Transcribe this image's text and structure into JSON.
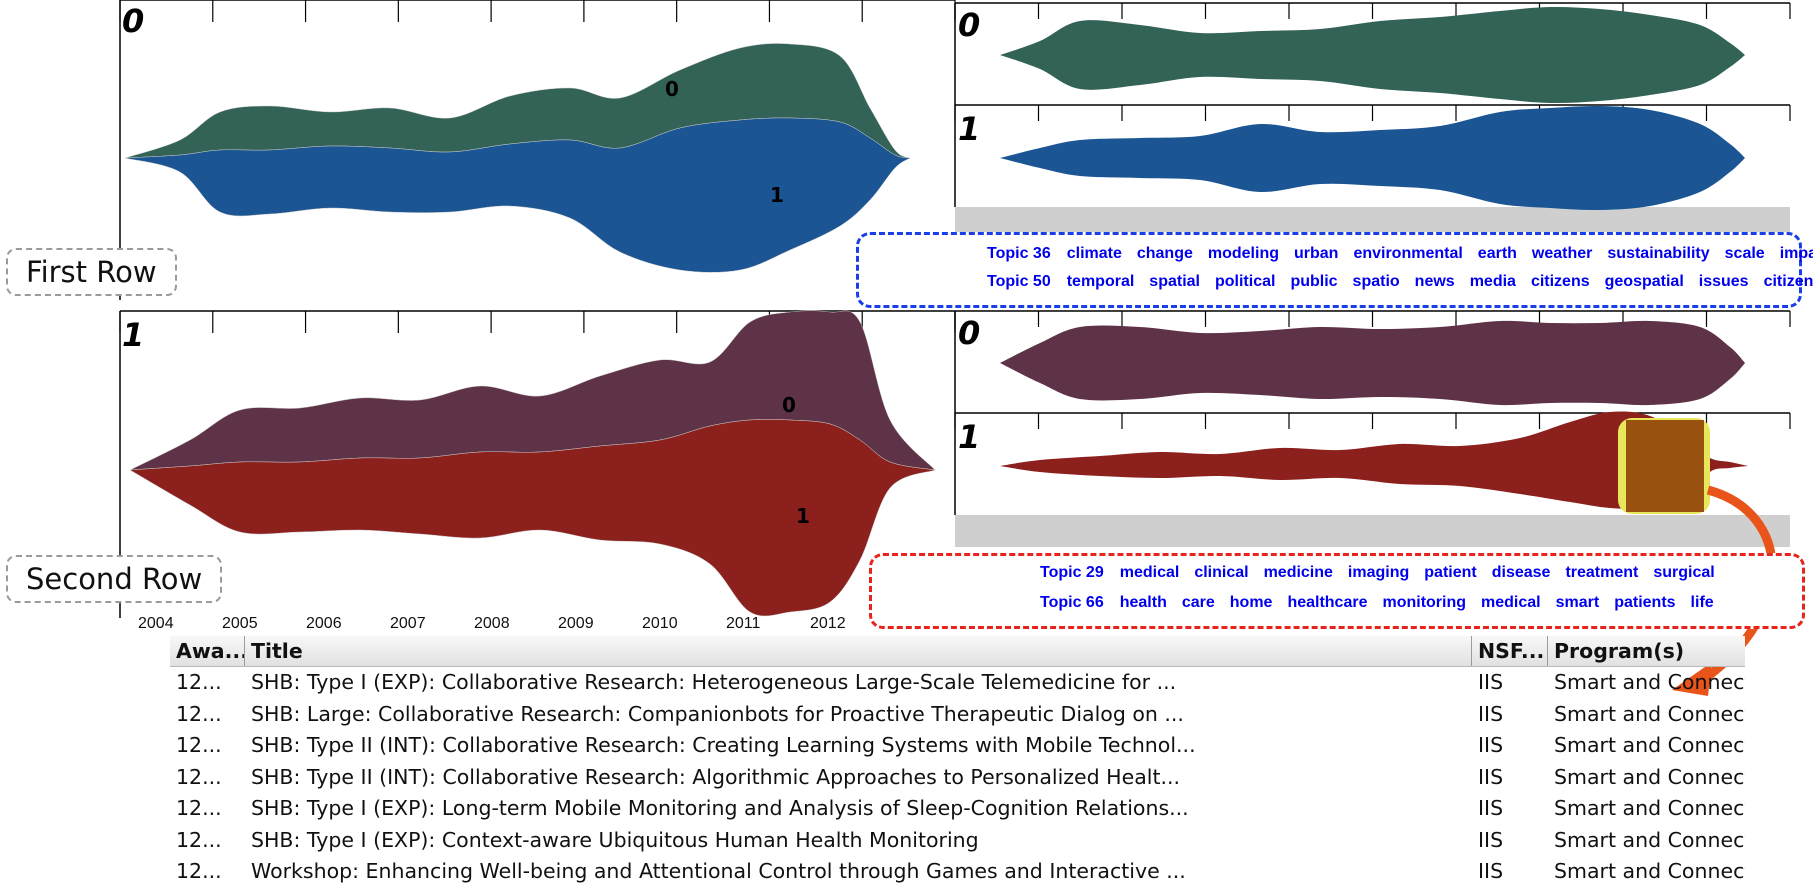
{
  "row_labels": {
    "first": "First Row",
    "second": "Second Row"
  },
  "years": [
    "2004",
    "2005",
    "2006",
    "2007",
    "2008",
    "2009",
    "2010",
    "2011",
    "2012"
  ],
  "panels": {
    "first_overview": {
      "label": "0",
      "colors": {
        "top": "#326356",
        "bottom": "#1b5593"
      },
      "stream_labels": [
        "0",
        "1"
      ]
    },
    "first_top": {
      "label": "0",
      "color": "#326356"
    },
    "first_bottom": {
      "label": "1",
      "color": "#1b5593"
    },
    "second_overview": {
      "label": "1",
      "colors": {
        "top": "#5f3347",
        "bottom": "#8b201d"
      },
      "stream_labels": [
        "0",
        "1"
      ]
    },
    "second_top": {
      "label": "0",
      "color": "#5f3347"
    },
    "second_bottom": {
      "label": "1",
      "color": "#8b201d"
    },
    "highlight_color": "#e8e65a",
    "selection_color": "#98510e"
  },
  "topic_boxes": {
    "first": {
      "border_color": "#1a3ee8",
      "node_color": "#2762a8",
      "topics": [
        {
          "id": "Topic 36",
          "color": "#326356",
          "words": [
            "climate",
            "change",
            "modeling",
            "urban",
            "environmental",
            "earth",
            "weather",
            "sustainability",
            "scale",
            "impacts"
          ]
        },
        {
          "id": "Topic 50",
          "color": "#1b5593",
          "words": [
            "temporal",
            "spatial",
            "political",
            "public",
            "spatio",
            "news",
            "media",
            "citizens",
            "geospatial",
            "issues",
            "citizen"
          ]
        }
      ]
    },
    "second": {
      "border_color": "#e8231b",
      "node_color": "#ff2a1e",
      "topics": [
        {
          "id": "Topic 29",
          "color": "#5f3347",
          "words": [
            "medical",
            "clinical",
            "medicine",
            "imaging",
            "patient",
            "disease",
            "treatment",
            "surgical"
          ]
        },
        {
          "id": "Topic 66",
          "color": "#8b201d",
          "words": [
            "health",
            "care",
            "home",
            "healthcare",
            "monitoring",
            "medical",
            "smart",
            "patients",
            "life"
          ]
        }
      ]
    }
  },
  "table": {
    "headers": [
      "Awa...",
      "Title",
      "NSF...",
      "Program(s)"
    ],
    "rows": [
      [
        "12...",
        "SHB: Type I (EXP): Collaborative Research: Heterogeneous Large-Scale Telemedicine for ...",
        "IIS",
        "Smart and Connected Health"
      ],
      [
        "12...",
        "SHB: Large: Collaborative Research: Companionbots for Proactive Therapeutic Dialog on ...",
        "IIS",
        "Smart and Connected Health, .."
      ],
      [
        "12...",
        "SHB: Type II (INT): Collaborative Research: Creating Learning Systems with Mobile Technol...",
        "IIS",
        "Smart and Connected Health, .."
      ],
      [
        "12...",
        "SHB: Type II (INT): Collaborative Research: Algorithmic Approaches to Personalized Healt...",
        "IIS",
        "Smart and Connected Health"
      ],
      [
        "12...",
        "SHB: Type I (EXP): Long-term Mobile Monitoring and Analysis of Sleep-Cognition Relations...",
        "IIS",
        "Smart and Connected Health"
      ],
      [
        "12...",
        "SHB: Type I (EXP): Context-aware Ubiquitous Human Health Monitoring",
        "IIS",
        "Smart and Connected Health, .."
      ],
      [
        "12...",
        "Workshop: Enhancing Well-being and Attentional Control through Games and Interactive ...",
        "IIS",
        "Smart and Connected Health"
      ]
    ]
  },
  "arrow_color": "#e8541a"
}
